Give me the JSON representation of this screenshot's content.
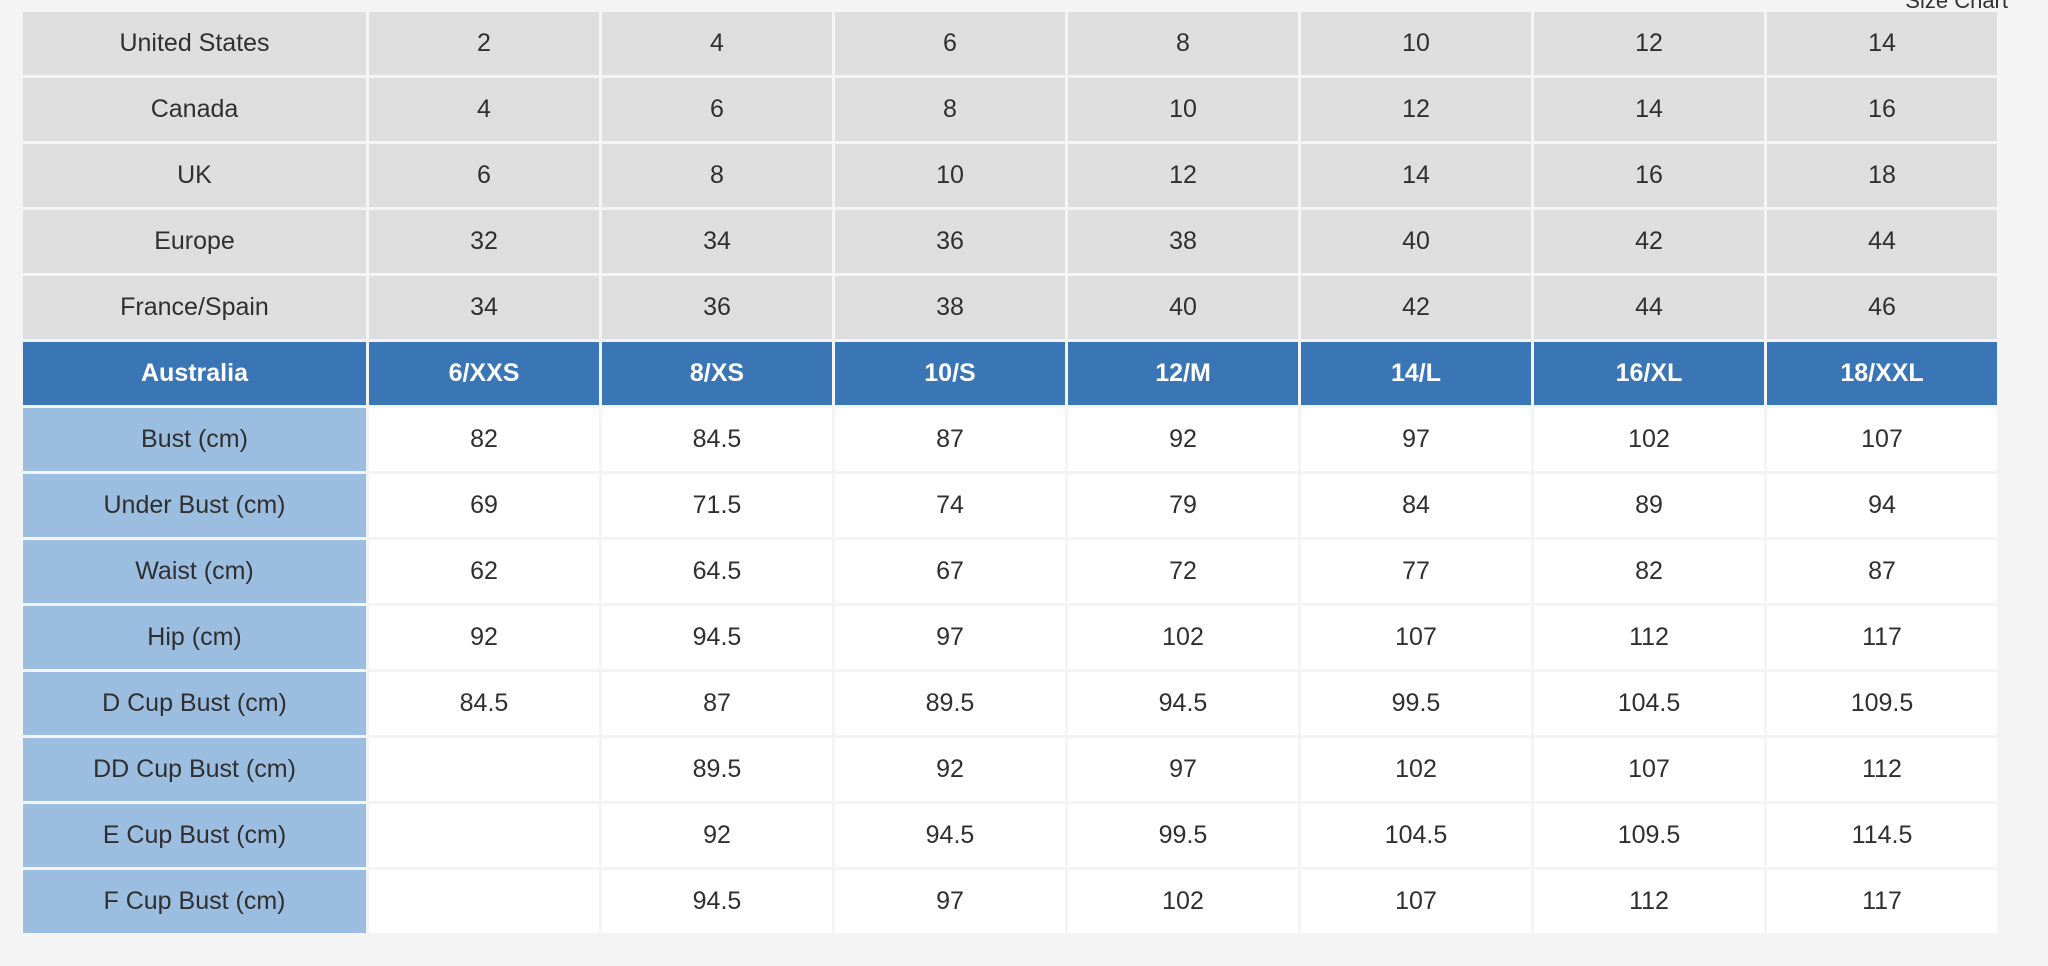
{
  "corner_label": "Size Chart",
  "region_rows": [
    {
      "label": "United States",
      "values": [
        "2",
        "4",
        "6",
        "8",
        "10",
        "12",
        "14"
      ]
    },
    {
      "label": "Canada",
      "values": [
        "4",
        "6",
        "8",
        "10",
        "12",
        "14",
        "16"
      ]
    },
    {
      "label": "UK",
      "values": [
        "6",
        "8",
        "10",
        "12",
        "14",
        "16",
        "18"
      ]
    },
    {
      "label": "Europe",
      "values": [
        "32",
        "34",
        "36",
        "38",
        "40",
        "42",
        "44"
      ]
    },
    {
      "label": "France/Spain",
      "values": [
        "34",
        "36",
        "38",
        "40",
        "42",
        "44",
        "46"
      ]
    }
  ],
  "header_row": {
    "label": "Australia",
    "values": [
      "6/XXS",
      "8/XS",
      "10/S",
      "12/M",
      "14/L",
      "16/XL",
      "18/XXL"
    ]
  },
  "measure_rows": [
    {
      "label": "Bust (cm)",
      "values": [
        "82",
        "84.5",
        "87",
        "92",
        "97",
        "102",
        "107"
      ]
    },
    {
      "label": "Under Bust (cm)",
      "values": [
        "69",
        "71.5",
        "74",
        "79",
        "84",
        "89",
        "94"
      ]
    },
    {
      "label": "Waist (cm)",
      "values": [
        "62",
        "64.5",
        "67",
        "72",
        "77",
        "82",
        "87"
      ]
    },
    {
      "label": "Hip (cm)",
      "values": [
        "92",
        "94.5",
        "97",
        "102",
        "107",
        "112",
        "117"
      ]
    },
    {
      "label": "D Cup Bust (cm)",
      "values": [
        "84.5",
        "87",
        "89.5",
        "94.5",
        "99.5",
        "104.5",
        "109.5"
      ]
    },
    {
      "label": "DD Cup Bust (cm)",
      "values": [
        "",
        "89.5",
        "92",
        "97",
        "102",
        "107",
        "112"
      ]
    },
    {
      "label": "E Cup Bust (cm)",
      "values": [
        "",
        "92",
        "94.5",
        "99.5",
        "104.5",
        "109.5",
        "114.5"
      ]
    },
    {
      "label": "F Cup Bust (cm)",
      "values": [
        "",
        "94.5",
        "97",
        "102",
        "107",
        "112",
        "117"
      ]
    }
  ]
}
